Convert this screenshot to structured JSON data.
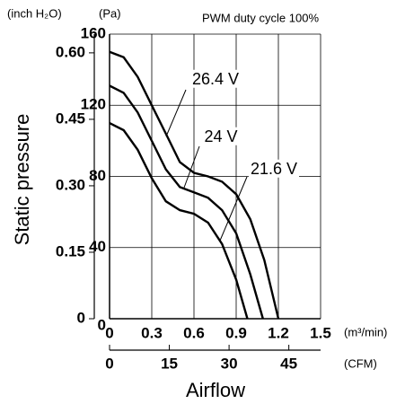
{
  "chart_data": {
    "type": "line",
    "title": "PWM duty cycle 100%",
    "y_label": "Static pressure",
    "y_unit": "(Pa)",
    "y2_unit": "(inch H₂O)",
    "x_label": "Airflow",
    "x_unit": "(m³/min)",
    "x2_unit": "(CFM)",
    "xlim": [
      0,
      1.5
    ],
    "xticks": [
      0,
      0.3,
      0.6,
      0.9,
      1.2,
      1.5
    ],
    "x2lim": [
      0,
      52.97
    ],
    "x2ticks": [
      0,
      15,
      30,
      45
    ],
    "ylim": [
      0,
      160
    ],
    "yticks": [
      0,
      40,
      80,
      120,
      160
    ],
    "y2lim": [
      0,
      0.6423
    ],
    "y2ticks": [
      0,
      0.15,
      {
        "value": 0.3,
        "label": "0.30"
      },
      0.45,
      {
        "value": 0.6,
        "label": "0.60"
      }
    ],
    "grid": true,
    "series": [
      {
        "name": "26.4 V",
        "color": "#000000",
        "x": [
          0,
          0.1,
          0.2,
          0.3,
          0.4,
          0.5,
          0.6,
          0.7,
          0.8,
          0.9,
          1.0,
          1.1,
          1.2
        ],
        "values": [
          150,
          147,
          136,
          120,
          104,
          88,
          82,
          80,
          77,
          70,
          56,
          33,
          0
        ]
      },
      {
        "name": "24 V",
        "color": "#000000",
        "x": [
          0,
          0.1,
          0.2,
          0.3,
          0.4,
          0.5,
          0.6,
          0.7,
          0.8,
          0.9,
          1.0,
          1.09
        ],
        "values": [
          131,
          127,
          116,
          100,
          84,
          74,
          71,
          68,
          61,
          48,
          25,
          0
        ]
      },
      {
        "name": "21.6 V",
        "color": "#000000",
        "x": [
          0,
          0.1,
          0.2,
          0.3,
          0.4,
          0.5,
          0.6,
          0.7,
          0.8,
          0.9,
          0.98
        ],
        "values": [
          110,
          106,
          95,
          79,
          66,
          61,
          59,
          54,
          42,
          22,
          0
        ]
      }
    ]
  }
}
